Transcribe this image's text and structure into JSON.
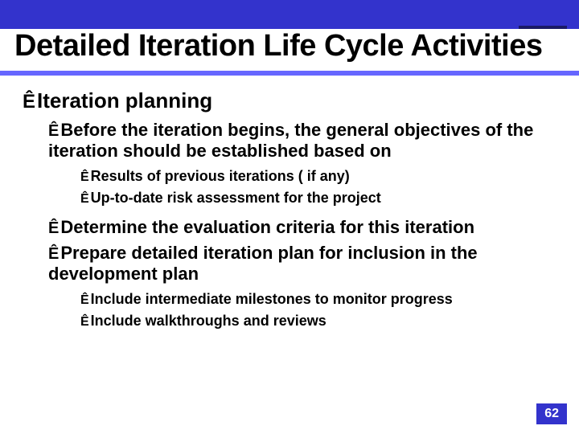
{
  "title": "Detailed Iteration Life Cycle Activities",
  "colors": {
    "blue_primary": "#3333cc",
    "blue_dark": "#1a1a66",
    "blue_light": "#6666ff",
    "text": "#000000",
    "background": "#ffffff",
    "page_num_text": "#ffffff"
  },
  "typography": {
    "title_fontsize": 38,
    "level1_fontsize": 26,
    "level2_fontsize": 22,
    "level3_fontsize": 18,
    "title_family": "Arial Narrow",
    "body_family": "Arial"
  },
  "bullet_glyph": "Ê",
  "content": {
    "l1_a": "Iteration planning",
    "l2_a1": "Before the iteration begins, the general objectives of the iteration should be established based on",
    "l3_a1a": "Results of previous iterations ( if any)",
    "l3_a1b": "Up-to-date risk assessment for the project",
    "l2_a2": "Determine the evaluation criteria for this iteration",
    "l2_a3": "Prepare detailed iteration plan for inclusion in the development plan",
    "l3_a3a": "Include intermediate milestones to monitor progress",
    "l3_a3b": "Include walkthroughs and reviews"
  },
  "page_number": "62"
}
